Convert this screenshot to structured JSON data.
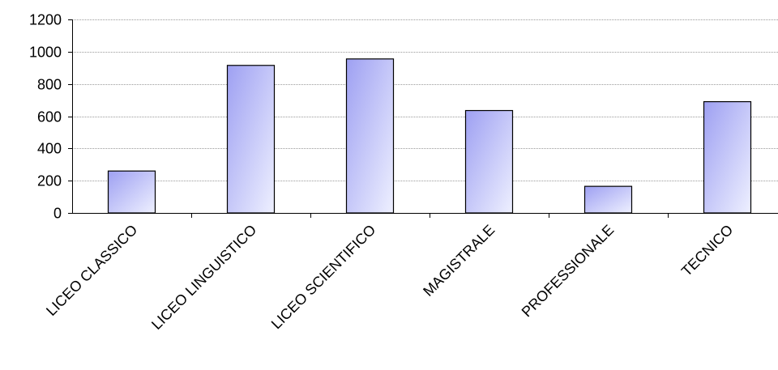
{
  "chart_data": {
    "type": "bar",
    "categories": [
      "LICEO CLASSICO",
      "LICEO LINGUISTICO",
      "LICEO SCIENTIFICO",
      "MAGISTRALE",
      "PROFESSIONALE",
      "TECNICO"
    ],
    "values": [
      260,
      915,
      955,
      635,
      165,
      690
    ],
    "yticks": [
      "0",
      "200",
      "400",
      "600",
      "800",
      "1000",
      "1200"
    ],
    "ylim": [
      0,
      1200
    ],
    "grid": true,
    "legend": "none",
    "bar_color_light": "#eef0ff",
    "bar_color_dark": "#9ea0f2",
    "bar_stroke": "#000000",
    "grid_color": "#9a9a9a"
  }
}
